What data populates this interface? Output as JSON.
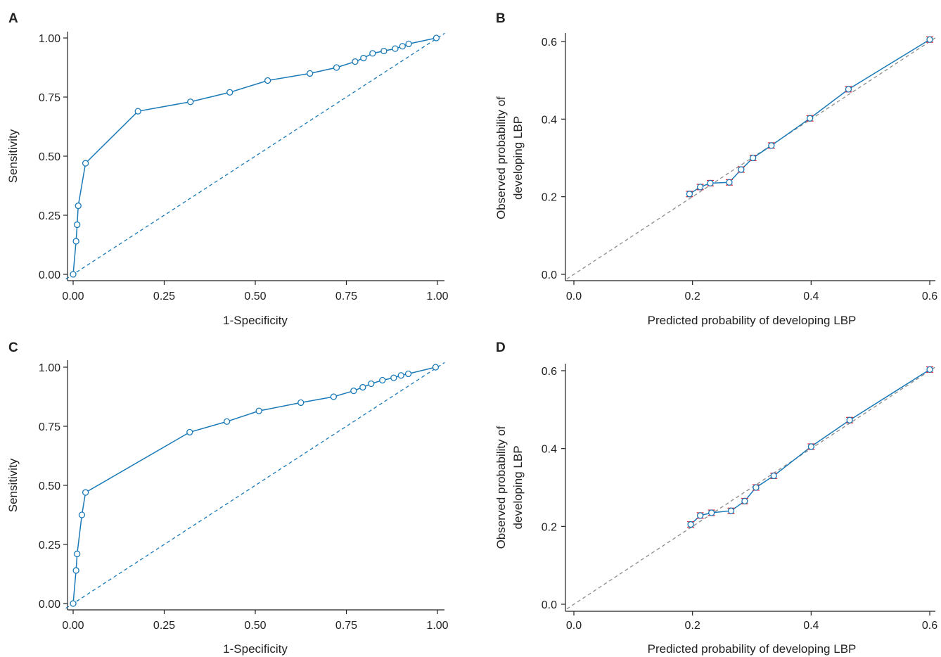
{
  "colors": {
    "line": "#1a7ab8",
    "reference": "#1a7ab8",
    "calibration_reference": "#8c8c8c",
    "error_bar": "#e0283a",
    "axis": "#222222"
  },
  "chart_data": [
    {
      "panel": "A",
      "type": "line",
      "xlabel": "1-Specificity",
      "ylabel": "Sensitivity",
      "xlim": [
        0,
        1
      ],
      "ylim": [
        0,
        1
      ],
      "xticks": [
        "0.00",
        "0.25",
        "0.50",
        "0.75",
        "1.00"
      ],
      "yticks": [
        "0.00",
        "0.25",
        "0.50",
        "0.75",
        "1.00"
      ],
      "reference_line": "diagonal-dashed",
      "series": [
        {
          "x": [
            0.0,
            0.008,
            0.011,
            0.014,
            0.034,
            0.178,
            0.322,
            0.43,
            0.534,
            0.65,
            0.723,
            0.774,
            0.797,
            0.822,
            0.853,
            0.884,
            0.904,
            0.921,
            0.997
          ],
          "y": [
            0.0,
            0.14,
            0.21,
            0.29,
            0.47,
            0.69,
            0.73,
            0.77,
            0.82,
            0.85,
            0.875,
            0.9,
            0.915,
            0.935,
            0.945,
            0.955,
            0.965,
            0.975,
            1.0
          ]
        }
      ]
    },
    {
      "panel": "B",
      "type": "line",
      "xlabel": "Predicted probability of developing LBP",
      "ylabel": "Observed probability of developing LBP",
      "xlim": [
        0,
        0.6
      ],
      "ylim": [
        0,
        0.6
      ],
      "xticks": [
        "0.0",
        "0.2",
        "0.4",
        "0.6"
      ],
      "yticks": [
        "0.0",
        "0.2",
        "0.4",
        "0.6"
      ],
      "reference_line": "diagonal-dashed",
      "error_bars": true,
      "series": [
        {
          "x": [
            0.195,
            0.213,
            0.23,
            0.262,
            0.282,
            0.302,
            0.333,
            0.398,
            0.463,
            0.6
          ],
          "y": [
            0.207,
            0.225,
            0.235,
            0.237,
            0.27,
            0.3,
            0.332,
            0.402,
            0.477,
            0.605
          ],
          "err": [
            0.007,
            0.007,
            0.007,
            0.007,
            0.007,
            0.007,
            0.007,
            0.007,
            0.007,
            0.007
          ]
        }
      ]
    },
    {
      "panel": "C",
      "type": "line",
      "xlabel": "1-Specificity",
      "ylabel": "Sensitivity",
      "xlim": [
        0,
        1
      ],
      "ylim": [
        0,
        1
      ],
      "xticks": [
        "0.00",
        "0.25",
        "0.50",
        "0.75",
        "1.00"
      ],
      "yticks": [
        "0.00",
        "0.25",
        "0.50",
        "0.75",
        "1.00"
      ],
      "reference_line": "diagonal-dashed",
      "series": [
        {
          "x": [
            0.0,
            0.008,
            0.011,
            0.024,
            0.034,
            0.32,
            0.422,
            0.51,
            0.625,
            0.715,
            0.77,
            0.795,
            0.818,
            0.849,
            0.88,
            0.9,
            0.92,
            0.995
          ],
          "y": [
            0.0,
            0.14,
            0.21,
            0.375,
            0.47,
            0.725,
            0.77,
            0.815,
            0.85,
            0.875,
            0.9,
            0.915,
            0.93,
            0.945,
            0.955,
            0.965,
            0.972,
            1.0
          ]
        }
      ]
    },
    {
      "panel": "D",
      "type": "line",
      "xlabel": "Predicted probability of developing LBP",
      "ylabel": "Observed probability of developing LBP",
      "xlim": [
        0,
        0.6
      ],
      "ylim": [
        0,
        0.6
      ],
      "xticks": [
        "0.0",
        "0.2",
        "0.4",
        "0.6"
      ],
      "yticks": [
        "0.0",
        "0.2",
        "0.4",
        "0.6"
      ],
      "reference_line": "diagonal-dashed",
      "error_bars": true,
      "series": [
        {
          "x": [
            0.197,
            0.213,
            0.232,
            0.265,
            0.288,
            0.307,
            0.337,
            0.4,
            0.465,
            0.6
          ],
          "y": [
            0.205,
            0.228,
            0.235,
            0.24,
            0.265,
            0.3,
            0.33,
            0.405,
            0.473,
            0.603
          ],
          "err": [
            0.007,
            0.007,
            0.007,
            0.007,
            0.007,
            0.007,
            0.007,
            0.007,
            0.007,
            0.007
          ]
        }
      ]
    }
  ]
}
